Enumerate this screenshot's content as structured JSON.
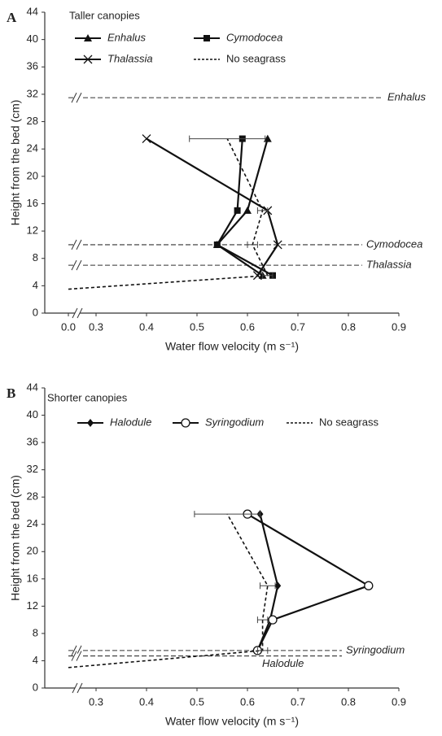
{
  "chart_data": [
    {
      "type": "line",
      "panel_label": "A",
      "legend_title": "Taller canopies",
      "xlabel": "Water flow velocity (m s⁻¹)",
      "ylabel": "Height from the bed (cm)",
      "xlim": [
        0.3,
        0.9
      ],
      "xticks": [
        {
          "value": 0,
          "label": "0.0"
        },
        0.3,
        0.4,
        0.5,
        0.6,
        0.7,
        0.8,
        0.9
      ],
      "ylim": [
        0,
        44
      ],
      "yticks": [
        0,
        4,
        8,
        12,
        16,
        20,
        24,
        28,
        32,
        36,
        40,
        44
      ],
      "axis_break": true,
      "series": [
        {
          "name": "Enhalus",
          "color": "#111111",
          "marker": "triangle",
          "x": [
            0.64,
            0.6,
            0.54,
            0.63
          ],
          "values": [
            25.5,
            15,
            10,
            5.5
          ]
        },
        {
          "name": "Cymodocea",
          "color": "#111111",
          "marker": "square",
          "x": [
            0.59,
            0.58,
            0.54,
            0.65
          ],
          "values": [
            25.5,
            15,
            10,
            5.5
          ]
        },
        {
          "name": "Thalassia",
          "color": "#111111",
          "marker": "x",
          "x": [
            0.4,
            0.64,
            0.66,
            0.62
          ],
          "values": [
            25.5,
            15,
            10,
            5.5
          ]
        },
        {
          "name": "No seagrass",
          "color": "#111111",
          "dashed": true,
          "x": [
            0,
            0.64,
            0.61,
            0.63,
            0.56
          ],
          "values": [
            3.5,
            5.5,
            10,
            15,
            25.5
          ],
          "errors": [
            null,
            0.01,
            0.01,
            0.01,
            0.075
          ]
        }
      ],
      "canopy_heights": [
        {
          "label": "Enhalus",
          "value": 31.5
        },
        {
          "label": "Cymodocea",
          "value": 10
        },
        {
          "label": "Thalassia",
          "value": 7
        }
      ]
    },
    {
      "type": "line",
      "panel_label": "B",
      "legend_title": "Shorter canopies",
      "xlabel": "Water flow velocity (m s⁻¹)",
      "ylabel": "Height from the bed (cm)",
      "xlim": [
        0.3,
        0.9
      ],
      "xticks": [
        0.3,
        0.4,
        0.5,
        0.6,
        0.7,
        0.8,
        0.9
      ],
      "ylim": [
        0,
        44
      ],
      "yticks": [
        0,
        4,
        8,
        12,
        16,
        20,
        24,
        28,
        32,
        36,
        40,
        44
      ],
      "axis_break": true,
      "series": [
        {
          "name": "Halodule",
          "color": "#111111",
          "marker": "diamond",
          "x": [
            0.625,
            0.66,
            0.645,
            0.62
          ],
          "values": [
            25.5,
            15,
            10,
            5.5
          ]
        },
        {
          "name": "Syringodium",
          "color": "#111111",
          "marker": "circle",
          "x": [
            0.6,
            0.84,
            0.65,
            0.62
          ],
          "values": [
            25.5,
            15,
            10,
            5.5
          ]
        },
        {
          "name": "No seagrass",
          "color": "#111111",
          "dashed": true,
          "x": [
            0,
            0.63,
            0.63,
            0.64,
            0.56
          ],
          "values": [
            3,
            5.5,
            10,
            15,
            25.5
          ],
          "errors": [
            null,
            0.01,
            0.01,
            0.015,
            0.065
          ]
        }
      ],
      "canopy_heights": [
        {
          "label": "Syringodium",
          "value": 5.5
        },
        {
          "label": "Halodule",
          "value": 4.7
        }
      ]
    }
  ]
}
